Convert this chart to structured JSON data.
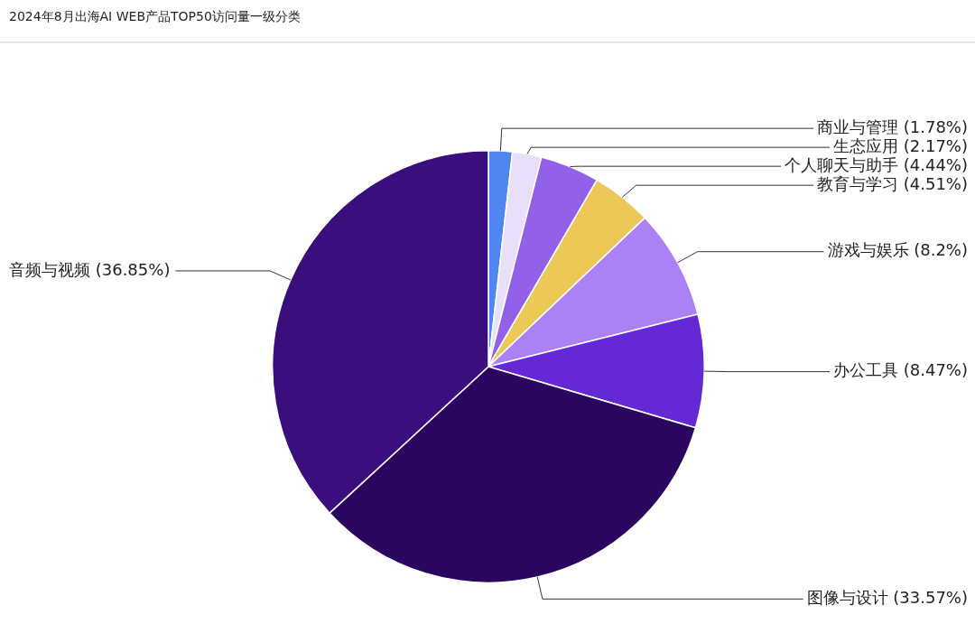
{
  "chart_data": {
    "type": "pie",
    "title": "2024年8月出海AI WEB产品TOP50访问量一级分类",
    "categories": [
      "商业与管理",
      "生态应用",
      "个人聊天与助手",
      "教育与学习",
      "游戏与娱乐",
      "办公工具",
      "图像与设计",
      "音频与视频"
    ],
    "values": [
      1.78,
      2.17,
      4.44,
      4.51,
      8.2,
      8.47,
      33.57,
      36.85
    ],
    "value_labels": [
      "(1.78%)",
      "(2.17%)",
      "(4.44%)",
      "(4.51%)",
      "(8.2%)",
      "(8.47%)",
      "(33.57%)",
      "(36.85%)"
    ],
    "colors": [
      "#4f86f0",
      "#e8e0fb",
      "#9360e8",
      "#ecc957",
      "#aa82f5",
      "#6428d4",
      "#2a0660",
      "#3a0e7c"
    ],
    "legend": false
  }
}
